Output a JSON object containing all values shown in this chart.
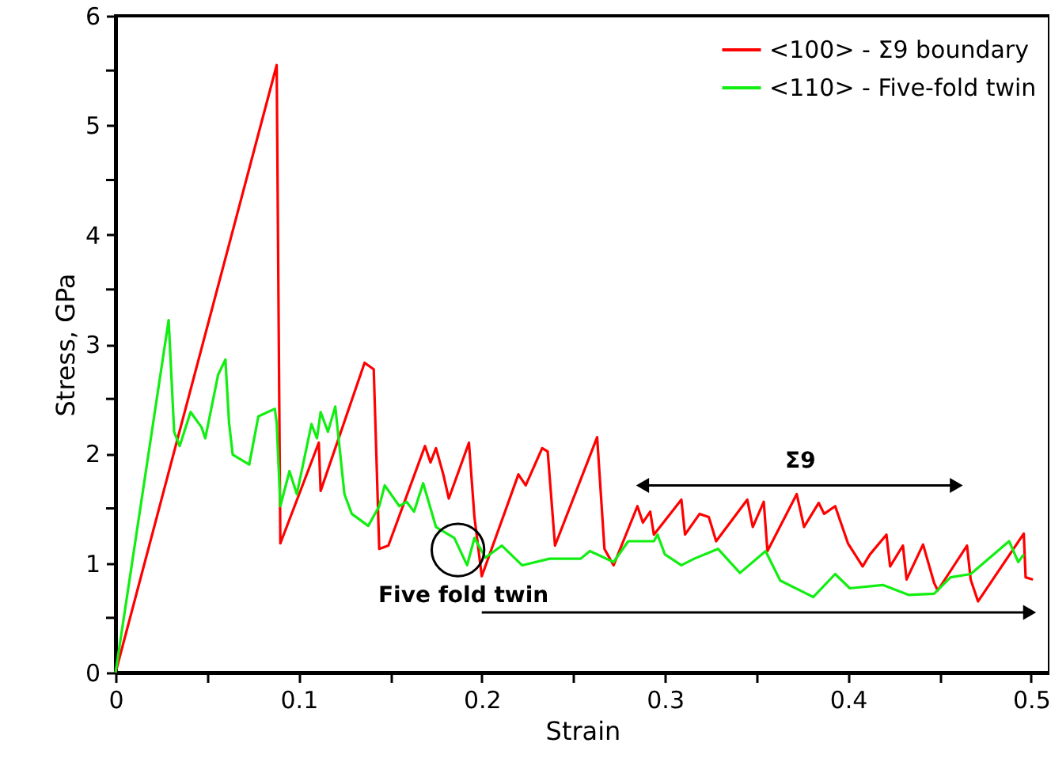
{
  "chart_data": {
    "type": "line",
    "xlabel": "Strain",
    "ylabel": "Stress, GPa",
    "xlim": [
      0,
      0.51
    ],
    "ylim": [
      0,
      6
    ],
    "xticks": [
      0,
      {
        "value": 0.05,
        "label": null
      },
      0.1,
      {
        "value": 0.15,
        "label": null
      },
      0.2,
      {
        "value": 0.25,
        "label": null
      },
      0.3,
      {
        "value": 0.35,
        "label": null
      },
      0.4,
      {
        "value": 0.45,
        "label": null
      },
      0.5
    ],
    "yticks": [
      0,
      {
        "value": 0.5,
        "label": null
      },
      1,
      {
        "value": 1.5,
        "label": null
      },
      2,
      {
        "value": 2.5,
        "label": null
      },
      3,
      {
        "value": 3.5,
        "label": null
      },
      4,
      {
        "value": 4.5,
        "label": null
      },
      5,
      {
        "value": 5.5,
        "label": null
      },
      6
    ],
    "grid": false,
    "legend": "top right",
    "marker": "none",
    "line_style": "solid",
    "annotations": [
      "Σ9",
      "Five fold twin"
    ],
    "series": [
      {
        "name": "<100> - Σ9 boundary",
        "color": "#ff0000",
        "x": [
          0,
          0.088,
          0.09,
          0.111,
          0.112,
          0.136,
          0.141,
          0.144,
          0.149,
          0.169,
          0.172,
          0.175,
          0.179,
          0.182,
          0.193,
          0.196,
          0.2,
          0.22,
          0.224,
          0.233,
          0.236,
          0.24,
          0.263,
          0.267,
          0.272,
          0.285,
          0.288,
          0.292,
          0.294,
          0.309,
          0.311,
          0.319,
          0.324,
          0.328,
          0.345,
          0.348,
          0.354,
          0.356,
          0.372,
          0.376,
          0.384,
          0.387,
          0.393,
          0.4,
          0.408,
          0.412,
          0.421,
          0.423,
          0.43,
          0.432,
          0.441,
          0.447,
          0.449,
          0.465,
          0.467,
          0.471,
          0.496,
          0.497,
          0.501
        ],
        "values": [
          0,
          5.55,
          1.18,
          2.1,
          1.66,
          2.83,
          2.77,
          1.13,
          1.16,
          2.07,
          1.92,
          2.05,
          1.81,
          1.59,
          2.1,
          1.42,
          0.88,
          1.81,
          1.71,
          2.05,
          2.02,
          1.16,
          2.15,
          1.13,
          0.98,
          1.52,
          1.37,
          1.47,
          1.26,
          1.58,
          1.26,
          1.45,
          1.42,
          1.2,
          1.58,
          1.33,
          1.56,
          1.11,
          1.63,
          1.33,
          1.55,
          1.45,
          1.52,
          1.18,
          0.97,
          1.08,
          1.26,
          0.97,
          1.16,
          0.85,
          1.17,
          0.82,
          0.75,
          1.16,
          0.85,
          0.65,
          1.27,
          0.87,
          0.85
        ]
      },
      {
        "name": "<110> - Five-fold twin",
        "color": "#11ee11",
        "x": [
          0,
          0.029,
          0.032,
          0.035,
          0.041,
          0.047,
          0.049,
          0.056,
          0.06,
          0.062,
          0.064,
          0.073,
          0.078,
          0.087,
          0.088,
          0.09,
          0.095,
          0.099,
          0.107,
          0.11,
          0.112,
          0.116,
          0.12,
          0.125,
          0.129,
          0.138,
          0.144,
          0.147,
          0.155,
          0.159,
          0.163,
          0.168,
          0.175,
          0.185,
          0.192,
          0.196,
          0.202,
          0.211,
          0.222,
          0.237,
          0.254,
          0.259,
          0.272,
          0.28,
          0.294,
          0.296,
          0.3,
          0.309,
          0.316,
          0.329,
          0.341,
          0.355,
          0.363,
          0.381,
          0.393,
          0.401,
          0.419,
          0.433,
          0.447,
          0.456,
          0.467,
          0.488,
          0.493,
          0.496
        ],
        "values": [
          0,
          3.22,
          2.2,
          2.07,
          2.38,
          2.24,
          2.14,
          2.72,
          2.86,
          2.28,
          1.99,
          1.9,
          2.34,
          2.41,
          2.28,
          1.52,
          1.84,
          1.63,
          2.27,
          2.14,
          2.38,
          2.2,
          2.43,
          1.63,
          1.45,
          1.34,
          1.52,
          1.71,
          1.52,
          1.56,
          1.47,
          1.73,
          1.33,
          1.23,
          0.98,
          1.23,
          1.05,
          1.16,
          0.98,
          1.04,
          1.04,
          1.11,
          1.01,
          1.2,
          1.2,
          1.26,
          1.08,
          0.98,
          1.04,
          1.13,
          0.91,
          1.11,
          0.84,
          0.69,
          0.9,
          0.77,
          0.8,
          0.71,
          0.72,
          0.87,
          0.9,
          1.2,
          1.01,
          1.08
        ]
      }
    ]
  }
}
